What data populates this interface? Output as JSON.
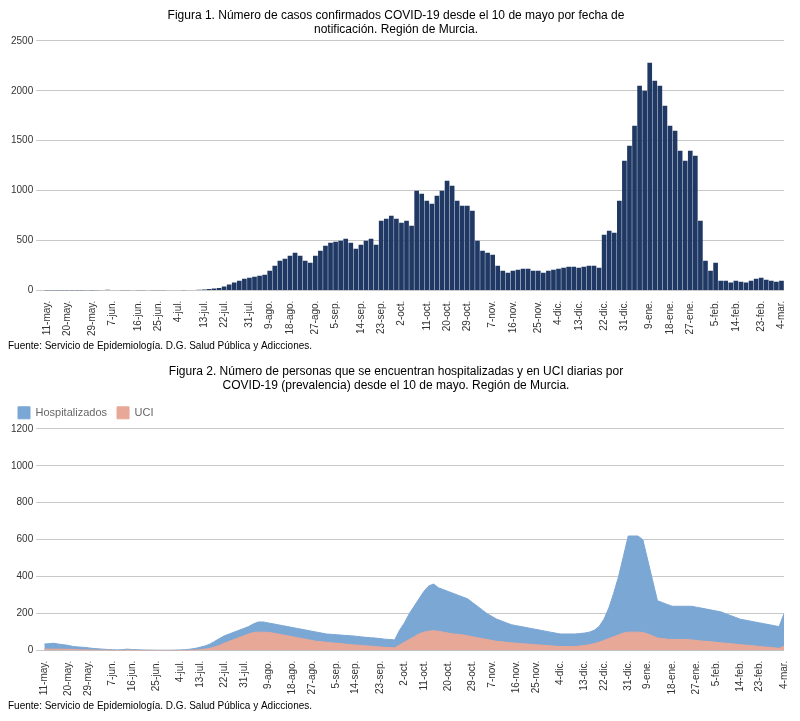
{
  "chart_data": [
    {
      "type": "bar",
      "title": "Figura 1. Número de casos confirmados COVID-19 desde el 10 de mayo por fecha de\nnotificación. Región de Murcia.",
      "annotations": [
        "Fuente: Servicio de Epidemiología. D.G. Salud Pública y Adicciones."
      ],
      "categories": [
        "11-may.",
        null,
        null,
        null,
        "20-may.",
        null,
        null,
        null,
        null,
        "29-may.",
        null,
        null,
        null,
        "7-jun.",
        null,
        null,
        null,
        null,
        "16-jun.",
        null,
        null,
        null,
        "25-jun.",
        null,
        null,
        null,
        "4-jul.",
        null,
        null,
        null,
        null,
        "13-jul.",
        null,
        null,
        null,
        "22-jul.",
        null,
        null,
        null,
        null,
        "31-jul.",
        null,
        null,
        null,
        "9-ago.",
        null,
        null,
        null,
        "18-ago.",
        null,
        null,
        null,
        null,
        "27-ago.",
        null,
        null,
        null,
        "5-sep.",
        null,
        null,
        null,
        null,
        "14-sep.",
        null,
        null,
        null,
        "23-sep.",
        null,
        null,
        null,
        "2-oct.",
        null,
        null,
        null,
        null,
        "11-oct.",
        null,
        null,
        null,
        "20-oct.",
        null,
        null,
        null,
        "29-oct.",
        null,
        null,
        null,
        null,
        "7-nov.",
        null,
        null,
        null,
        "16-nov.",
        null,
        null,
        null,
        null,
        "25-nov.",
        null,
        null,
        null,
        "4-dic.",
        null,
        null,
        null,
        "13-dic.",
        null,
        null,
        null,
        null,
        "22-dic.",
        null,
        null,
        null,
        "31-dic.",
        null,
        null,
        null,
        null,
        "9-ene.",
        null,
        null,
        null,
        "18-ene.",
        null,
        null,
        null,
        "27-ene.",
        null,
        null,
        null,
        null,
        "5-feb.",
        null,
        null,
        null,
        "14-feb.",
        null,
        null,
        null,
        null,
        "23-feb.",
        null,
        null,
        null,
        "4-mar."
      ],
      "values": [
        2,
        1,
        2,
        1,
        2,
        1,
        2,
        1,
        3,
        2,
        4,
        5,
        8,
        6,
        5,
        4,
        3,
        5,
        4,
        3,
        5,
        4,
        3,
        4,
        5,
        6,
        5,
        4,
        5,
        6,
        8,
        10,
        15,
        20,
        25,
        40,
        60,
        80,
        100,
        120,
        130,
        140,
        150,
        160,
        200,
        250,
        300,
        320,
        350,
        380,
        350,
        300,
        280,
        350,
        400,
        450,
        480,
        490,
        500,
        520,
        480,
        420,
        460,
        500,
        520,
        460,
        700,
        720,
        750,
        720,
        680,
        700,
        650,
        1000,
        970,
        900,
        870,
        950,
        1000,
        1100,
        1050,
        900,
        850,
        850,
        800,
        500,
        400,
        380,
        360,
        250,
        200,
        180,
        200,
        210,
        220,
        220,
        200,
        200,
        180,
        200,
        210,
        220,
        230,
        240,
        240,
        230,
        240,
        250,
        250,
        230,
        560,
        600,
        580,
        900,
        1300,
        1450,
        1650,
        2050,
        2000,
        2280,
        2100,
        2050,
        1850,
        1650,
        1600,
        1400,
        1300,
        1400,
        1350,
        700,
        300,
        200,
        280,
        100,
        100,
        80,
        100,
        90,
        80,
        100,
        120,
        130,
        110,
        100,
        90,
        100
      ],
      "color": "#1f3864",
      "ylim": [
        0,
        2500
      ],
      "yticks": [
        0,
        500,
        1000,
        1500,
        2000,
        2500
      ],
      "grid": true
    },
    {
      "type": "area",
      "title": "Figura 2. Número de personas que se encuentran hospitalizadas y en UCI diarias por\nCOVID-19 (prevalencia) desde el 10 de mayo. Región de Murcia.",
      "annotations": [
        "Fuente: Servicio de Epidemiología. D.G. Salud Pública y Adicciones."
      ],
      "categories": [
        "11-may.",
        null,
        null,
        null,
        null,
        "20-may.",
        null,
        null,
        null,
        "29-may.",
        null,
        null,
        null,
        null,
        "7-jun.",
        null,
        null,
        null,
        "16-jun.",
        null,
        null,
        null,
        null,
        "25-jun.",
        null,
        null,
        null,
        null,
        "4-jul.",
        null,
        null,
        null,
        "13-jul.",
        null,
        null,
        null,
        null,
        "22-jul.",
        null,
        null,
        null,
        "31-jul.",
        null,
        null,
        null,
        null,
        "9-ago.",
        null,
        null,
        null,
        null,
        "18-ago.",
        null,
        null,
        null,
        "27-ago.",
        null,
        null,
        null,
        null,
        "5-sep.",
        null,
        null,
        null,
        "14-sep.",
        null,
        null,
        null,
        null,
        "23-sep.",
        null,
        null,
        null,
        null,
        "2-oct.",
        null,
        null,
        null,
        "11-oct.",
        null,
        null,
        null,
        null,
        "20-oct.",
        null,
        null,
        null,
        null,
        "29-oct.",
        null,
        null,
        null,
        "7-nov.",
        null,
        null,
        null,
        null,
        "16-nov.",
        null,
        null,
        null,
        "25-nov.",
        null,
        null,
        null,
        null,
        "4-dic.",
        null,
        null,
        null,
        null,
        "13-dic.",
        null,
        null,
        null,
        "22-dic.",
        null,
        null,
        null,
        null,
        "31-dic.",
        null,
        null,
        null,
        "9-ene.",
        null,
        null,
        null,
        null,
        "18-ene.",
        null,
        null,
        null,
        null,
        "27-ene.",
        null,
        null,
        null,
        "5-feb.",
        null,
        null,
        null,
        null,
        "14-feb.",
        null,
        null,
        null,
        "23-feb.",
        null,
        null,
        null,
        null,
        "4-mar."
      ],
      "series": [
        {
          "name": "Hospitalizados",
          "color": "#7ba7d4",
          "values": [
            35,
            38,
            40,
            35,
            32,
            28,
            22,
            20,
            18,
            15,
            12,
            10,
            8,
            6,
            5,
            4,
            5,
            8,
            6,
            5,
            4,
            3,
            3,
            2,
            2,
            2,
            2,
            3,
            4,
            5,
            8,
            12,
            18,
            25,
            35,
            50,
            65,
            80,
            90,
            100,
            110,
            120,
            130,
            145,
            155,
            155,
            150,
            145,
            140,
            135,
            130,
            125,
            120,
            115,
            110,
            105,
            100,
            95,
            90,
            88,
            86,
            84,
            82,
            80,
            78,
            75,
            72,
            70,
            68,
            65,
            62,
            60,
            58,
            110,
            150,
            200,
            240,
            280,
            320,
            350,
            360,
            340,
            330,
            320,
            310,
            300,
            290,
            280,
            260,
            240,
            220,
            200,
            185,
            170,
            160,
            150,
            140,
            135,
            130,
            125,
            120,
            115,
            110,
            105,
            100,
            95,
            90,
            90,
            90,
            90,
            92,
            95,
            100,
            110,
            130,
            170,
            230,
            310,
            400,
            510,
            620,
            620,
            620,
            600,
            490,
            380,
            270,
            260,
            250,
            240,
            240,
            240,
            240,
            240,
            235,
            230,
            225,
            220,
            215,
            210,
            200,
            190,
            180,
            170,
            165,
            160,
            155,
            150,
            145,
            140,
            135,
            130,
            200
          ]
        },
        {
          "name": "UCI",
          "color": "#e8a898",
          "values": [
            8,
            8,
            8,
            8,
            7,
            7,
            6,
            5,
            4,
            4,
            3,
            3,
            2,
            2,
            1,
            1,
            1,
            2,
            2,
            1,
            1,
            1,
            1,
            1,
            1,
            1,
            1,
            1,
            1,
            1,
            2,
            3,
            5,
            8,
            12,
            20,
            28,
            40,
            50,
            60,
            70,
            80,
            90,
            98,
            100,
            100,
            98,
            95,
            90,
            85,
            80,
            75,
            70,
            65,
            60,
            55,
            50,
            48,
            45,
            42,
            40,
            38,
            35,
            32,
            30,
            28,
            26,
            24,
            22,
            20,
            18,
            16,
            15,
            30,
            45,
            60,
            75,
            90,
            100,
            105,
            108,
            105,
            100,
            95,
            90,
            88,
            85,
            80,
            75,
            70,
            65,
            60,
            55,
            50,
            48,
            45,
            42,
            40,
            38,
            36,
            34,
            32,
            30,
            28,
            26,
            24,
            22,
            22,
            22,
            22,
            25,
            28,
            32,
            38,
            45,
            55,
            65,
            75,
            85,
            95,
            100,
            100,
            100,
            98,
            90,
            80,
            68,
            65,
            62,
            60,
            60,
            60,
            60,
            58,
            55,
            52,
            50,
            48,
            45,
            42,
            40,
            38,
            35,
            32,
            30,
            28,
            25,
            22,
            20,
            18,
            15,
            12,
            25
          ]
        }
      ],
      "ylim": [
        0,
        1200
      ],
      "yticks": [
        0,
        200,
        400,
        600,
        800,
        1000,
        1200
      ],
      "grid": true,
      "legend": "upper left"
    }
  ]
}
